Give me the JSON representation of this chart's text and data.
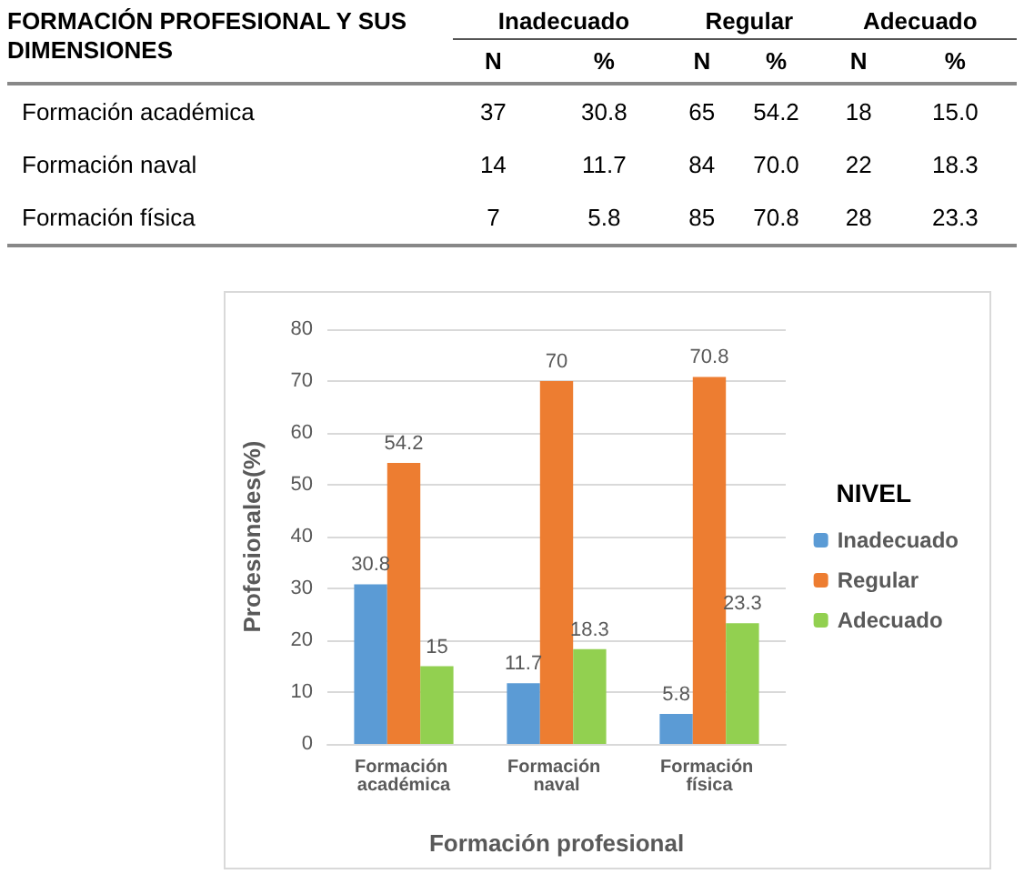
{
  "chart_data": [
    {
      "type": "other",
      "data_labels": true,
      "title": "FORMACIÓN PROFESIONAL Y SUS DIMENSIONES",
      "annotations": [
        "Inadecuado",
        "Regular",
        "Adecuado"
      ],
      "categories": [
        "Formación académica",
        "Formación naval",
        "Formación física"
      ],
      "series": [
        {
          "name": "N",
          "values": [
            37,
            14,
            7
          ]
        },
        {
          "name": "%",
          "values": [
            30.8,
            11.7,
            5.8
          ]
        },
        {
          "name": "N",
          "values": [
            65,
            84,
            85
          ]
        },
        {
          "name": "%",
          "values": [
            54.2,
            70.0,
            70.8
          ],
          "value_labels": [
            "54.2",
            "70.0",
            "70.8"
          ]
        },
        {
          "name": "N",
          "values": [
            18,
            22,
            28
          ]
        },
        {
          "name": "%",
          "values": [
            15.0,
            18.3,
            23.3
          ],
          "value_labels": [
            "15.0",
            "18.3",
            "23.3"
          ]
        }
      ]
    },
    {
      "type": "bar",
      "xlabel": "Formación profesional",
      "ylabel": "Profesionales(%)",
      "legend_title": "NIVEL",
      "categories": [
        "Formación académica",
        "Formación naval",
        "Formación física"
      ],
      "series": [
        {
          "name": "Inadecuado",
          "color": "#5b9bd5",
          "values": [
            30.8,
            11.7,
            5.8
          ]
        },
        {
          "name": "Regular",
          "color": "#ed7d31",
          "values": [
            54.2,
            70,
            70.8
          ]
        },
        {
          "name": "Adecuado",
          "color": "#92d050",
          "values": [
            15,
            18.3,
            23.3
          ]
        }
      ],
      "ylim": [
        0,
        80
      ],
      "yticks": [
        0,
        10,
        20,
        30,
        40,
        50,
        60,
        70,
        80
      ],
      "grid": "y",
      "legend": "right",
      "data_labels": true
    }
  ]
}
